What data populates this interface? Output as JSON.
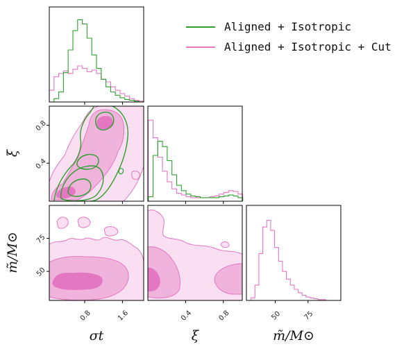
{
  "chart_data": {
    "type": "corner",
    "colors": {
      "aligned_isotropic": "#2ca02c",
      "cut": "#e377c2",
      "cut_fill_light": "#f9dff1",
      "cut_fill_mid": "#f0b3dc",
      "cut_fill_dark": "#e377c2"
    },
    "legend": {
      "placement": "top-right",
      "entries": [
        "Aligned + Isotropic",
        "Aligned + Isotropic + Cut"
      ]
    },
    "parameters": [
      {
        "key": "sigma_t",
        "label": "σt",
        "range": [
          0.05,
          2.05
        ],
        "ticks": [
          0.8,
          1.6
        ],
        "tick_labels": [
          "0.8",
          "1.6"
        ]
      },
      {
        "key": "xi",
        "label": "ξ",
        "range": [
          0.0,
          1.0
        ],
        "ticks": [
          0.4,
          0.8
        ],
        "tick_labels": [
          "0.4",
          "0.8"
        ]
      },
      {
        "key": "m",
        "label": "m̃/M⊙",
        "range": [
          28,
          100
        ],
        "ticks": [
          50,
          75
        ],
        "tick_labels": [
          "50",
          "75"
        ]
      }
    ],
    "hist_sigma_t": {
      "x": [
        0.1,
        0.2,
        0.3,
        0.4,
        0.5,
        0.6,
        0.7,
        0.8,
        0.9,
        1.0,
        1.1,
        1.2,
        1.3,
        1.4,
        1.5,
        1.6,
        1.7,
        1.8,
        1.9,
        2.0
      ],
      "aligned_isotropic": [
        0.0,
        0.04,
        0.12,
        0.35,
        0.62,
        0.85,
        0.98,
        0.93,
        0.76,
        0.56,
        0.4,
        0.27,
        0.18,
        0.12,
        0.08,
        0.05,
        0.03,
        0.02,
        0.01,
        0.0
      ],
      "cut": [
        0.14,
        0.3,
        0.34,
        0.37,
        0.34,
        0.39,
        0.43,
        0.4,
        0.36,
        0.38,
        0.34,
        0.27,
        0.24,
        0.18,
        0.14,
        0.1,
        0.07,
        0.04,
        0.02,
        0.01
      ]
    },
    "hist_xi": {
      "x": [
        0.03,
        0.08,
        0.13,
        0.18,
        0.23,
        0.28,
        0.33,
        0.38,
        0.43,
        0.48,
        0.53,
        0.58,
        0.63,
        0.68,
        0.73,
        0.78,
        0.83,
        0.88,
        0.93,
        0.98
      ],
      "aligned_isotropic": [
        0.05,
        0.52,
        0.68,
        0.62,
        0.46,
        0.3,
        0.18,
        0.12,
        0.08,
        0.06,
        0.05,
        0.04,
        0.04,
        0.04,
        0.04,
        0.05,
        0.06,
        0.07,
        0.06,
        0.04
      ],
      "cut": [
        0.92,
        0.72,
        0.5,
        0.34,
        0.22,
        0.14,
        0.09,
        0.07,
        0.05,
        0.04,
        0.04,
        0.04,
        0.04,
        0.05,
        0.06,
        0.08,
        0.1,
        0.12,
        0.11,
        0.08
      ]
    },
    "hist_m": {
      "x": [
        30,
        33,
        36,
        39,
        42,
        45,
        48,
        51,
        54,
        57,
        60,
        63,
        66,
        69,
        72,
        75,
        78,
        81,
        84,
        87,
        90,
        93,
        96
      ],
      "cut": [
        0.0,
        0.03,
        0.18,
        0.55,
        0.86,
        0.94,
        0.82,
        0.62,
        0.46,
        0.34,
        0.25,
        0.18,
        0.13,
        0.09,
        0.06,
        0.04,
        0.03,
        0.02,
        0.01,
        0.01,
        0.0,
        0.0,
        0.0
      ]
    },
    "contour_xi_vs_sigma_t": {
      "aligned_isotropic_levels": 3,
      "cut_levels": 3
    },
    "contour_m_vs_sigma_t": {
      "cut_levels": 3
    },
    "contour_m_vs_xi": {
      "cut_levels": 3
    }
  }
}
